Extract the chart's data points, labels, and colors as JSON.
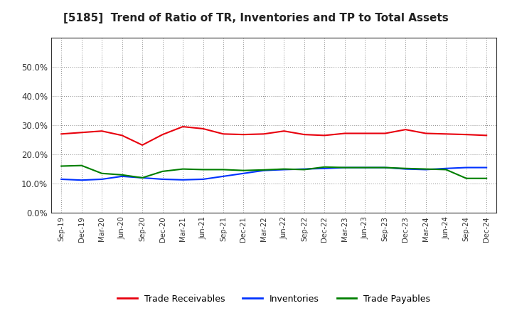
{
  "title": "[5185]  Trend of Ratio of TR, Inventories and TP to Total Assets",
  "x_labels": [
    "Sep-19",
    "Dec-19",
    "Mar-20",
    "Jun-20",
    "Sep-20",
    "Dec-20",
    "Mar-21",
    "Jun-21",
    "Sep-21",
    "Dec-21",
    "Mar-22",
    "Jun-22",
    "Sep-22",
    "Dec-22",
    "Mar-23",
    "Jun-23",
    "Sep-23",
    "Dec-23",
    "Mar-24",
    "Jun-24",
    "Sep-24",
    "Dec-24"
  ],
  "trade_receivables": [
    0.27,
    0.275,
    0.28,
    0.265,
    0.232,
    0.268,
    0.295,
    0.288,
    0.27,
    0.268,
    0.27,
    0.28,
    0.268,
    0.265,
    0.272,
    0.272,
    0.272,
    0.285,
    0.272,
    0.27,
    0.268,
    0.265
  ],
  "inventories": [
    0.115,
    0.112,
    0.115,
    0.125,
    0.12,
    0.115,
    0.113,
    0.115,
    0.125,
    0.135,
    0.145,
    0.148,
    0.15,
    0.152,
    0.155,
    0.155,
    0.155,
    0.15,
    0.148,
    0.152,
    0.155,
    0.155
  ],
  "trade_payables": [
    0.16,
    0.162,
    0.135,
    0.13,
    0.12,
    0.142,
    0.15,
    0.148,
    0.148,
    0.145,
    0.147,
    0.15,
    0.148,
    0.157,
    0.155,
    0.155,
    0.155,
    0.152,
    0.15,
    0.148,
    0.118,
    0.118
  ],
  "line_color_tr": "#e8000d",
  "line_color_inv": "#0032ff",
  "line_color_tp": "#007f00",
  "ylim": [
    0.0,
    0.6
  ],
  "yticks": [
    0.0,
    0.1,
    0.2,
    0.3,
    0.4,
    0.5
  ],
  "background_color": "#ffffff",
  "grid_color": "#888888",
  "legend_labels": [
    "Trade Receivables",
    "Inventories",
    "Trade Payables"
  ],
  "title_fontsize": 11,
  "linewidth": 1.5
}
